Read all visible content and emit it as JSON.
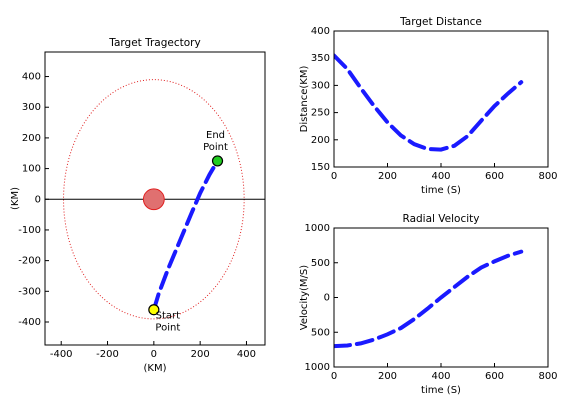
{
  "chart_data": [
    {
      "type": "line",
      "title": "Target Tragectory",
      "x_label": "(KM)",
      "y_label": "(KM)",
      "xlim": [
        -470,
        480
      ],
      "xticks": [
        -400,
        -200,
        0,
        200,
        400
      ],
      "ylim": [
        -475,
        480
      ],
      "yticks": [
        -400,
        -300,
        -200,
        -100,
        0,
        100,
        200,
        300,
        400
      ],
      "series": [
        {
          "name": "trajectory",
          "color": "#1a1aff",
          "x": [
            0,
            20,
            60,
            110,
            160,
            200,
            240,
            275
          ],
          "values": [
            -360,
            -310,
            -230,
            -140,
            -50,
            20,
            80,
            125
          ]
        }
      ],
      "reference_circle": {
        "radius": 390,
        "color": "#e02020"
      },
      "origin_marker": {
        "radius": 45,
        "color": "#e07070"
      },
      "zero_line": 0,
      "markers": [
        {
          "x": 0,
          "y": -360,
          "color": "#ffff00",
          "label": [
            "Start",
            "Point"
          ]
        },
        {
          "x": 275,
          "y": 125,
          "color": "#22cc22",
          "label": [
            "End",
            "Point"
          ]
        }
      ]
    },
    {
      "type": "line",
      "title": "Target Distance",
      "x_label": "time (S)",
      "y_label": "Distance(KM)",
      "xlim": [
        0,
        800
      ],
      "xticks": [
        0,
        200,
        400,
        600,
        800
      ],
      "ylim": [
        150,
        400
      ],
      "yticks": [
        150,
        200,
        250,
        300,
        350,
        400
      ],
      "series": [
        {
          "name": "distance",
          "color": "#1a1aff",
          "x": [
            0,
            50,
            100,
            150,
            200,
            250,
            300,
            350,
            400,
            450,
            500,
            550,
            600,
            650,
            700
          ],
          "values": [
            355,
            330,
            295,
            262,
            232,
            208,
            192,
            183,
            182,
            189,
            207,
            235,
            262,
            285,
            306
          ]
        }
      ]
    },
    {
      "type": "line",
      "title": "Radial Velocity",
      "x_label": "time (S)",
      "y_label": "Velocity(M/S)",
      "xlim": [
        0,
        800
      ],
      "xticks": [
        0,
        200,
        400,
        600,
        800
      ],
      "ylim": [
        -1000,
        1000
      ],
      "yticks": [
        {
          "value": -1000,
          "label": "1000"
        },
        {
          "value": -500,
          "label": "500"
        },
        0,
        500,
        1000
      ],
      "series": [
        {
          "name": "velocity",
          "color": "#1a1aff",
          "x": [
            0,
            50,
            100,
            150,
            200,
            250,
            300,
            350,
            400,
            450,
            500,
            550,
            600,
            650,
            700
          ],
          "values": [
            -700,
            -690,
            -660,
            -605,
            -530,
            -440,
            -310,
            -160,
            0,
            150,
            300,
            430,
            520,
            600,
            660
          ]
        }
      ]
    }
  ]
}
